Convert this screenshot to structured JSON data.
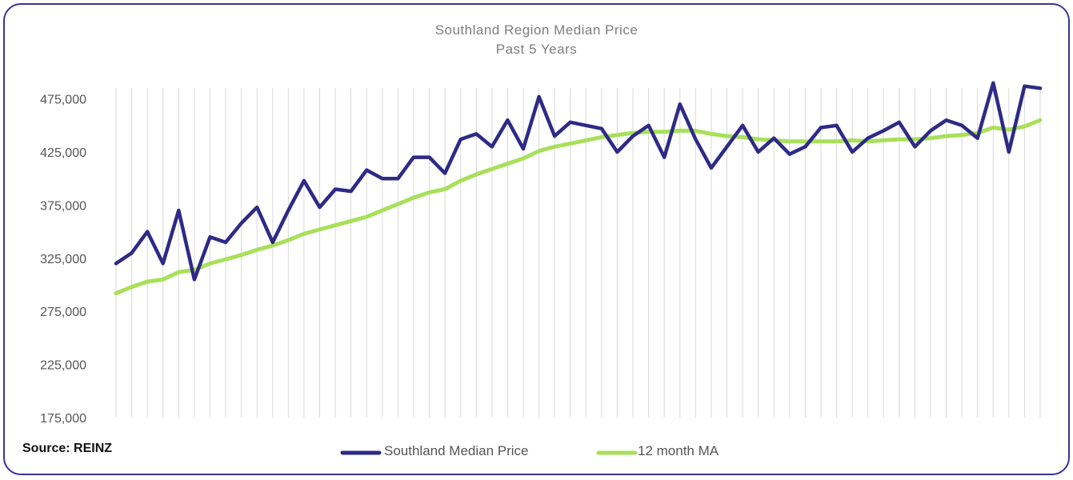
{
  "chart_data": {
    "type": "line",
    "title": "Southland Region Median Price",
    "subtitle": "Past 5 Years",
    "source": "Source: REINZ",
    "yticks": [
      "475,000",
      "425,000",
      "375,000",
      "325,000",
      "275,000",
      "225,000",
      "175,000"
    ],
    "ylim": [
      175000,
      490000
    ],
    "x_count": 60,
    "series": [
      {
        "name": "Southland Median Price",
        "color": "#2e2a86",
        "values": [
          320000,
          330000,
          350000,
          320000,
          370000,
          305000,
          345000,
          340000,
          358000,
          373000,
          340000,
          370000,
          398000,
          373000,
          390000,
          388000,
          408000,
          400000,
          400000,
          420000,
          420000,
          405000,
          437000,
          442000,
          430000,
          455000,
          428000,
          477000,
          440000,
          453000,
          450000,
          447000,
          425000,
          440000,
          450000,
          420000,
          470000,
          437000,
          410000,
          430000,
          450000,
          425000,
          438000,
          423000,
          430000,
          448000,
          450000,
          425000,
          438000,
          445000,
          453000,
          430000,
          445000,
          455000,
          450000,
          438000,
          490000,
          425000,
          487000,
          485000
        ]
      },
      {
        "name": "12 month MA",
        "color": "#a8e05a",
        "values": [
          292000,
          298000,
          303000,
          305000,
          312000,
          314000,
          320000,
          324000,
          328000,
          333000,
          337000,
          342000,
          348000,
          352000,
          356000,
          360000,
          364000,
          370000,
          376000,
          382000,
          387000,
          390000,
          398000,
          404000,
          409000,
          414000,
          419000,
          426000,
          430000,
          433000,
          436000,
          439000,
          441000,
          443000,
          444000,
          444000,
          445000,
          445000,
          442000,
          440000,
          439000,
          437000,
          436000,
          435000,
          435000,
          435000,
          435000,
          436000,
          435000,
          436000,
          437000,
          437000,
          438000,
          440000,
          441000,
          443000,
          448000,
          446000,
          449000,
          455000
        ]
      }
    ]
  }
}
